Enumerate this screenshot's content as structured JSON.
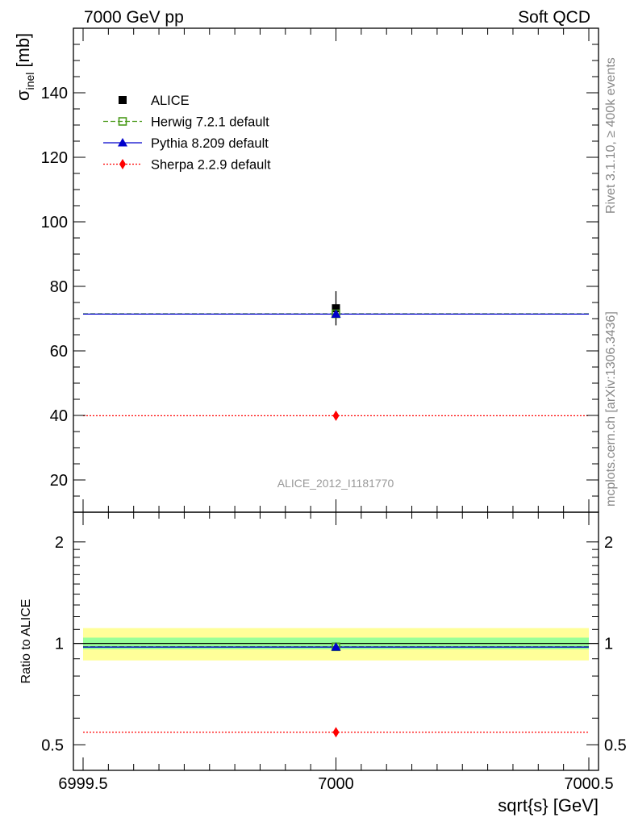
{
  "header": {
    "left": "7000 GeV pp",
    "right": "Soft QCD"
  },
  "side_labels": {
    "rivet": "Rivet 3.1.10, ≥ 400k events",
    "mcplots": "mcplots.cern.ch [arXiv:1306.3436]"
  },
  "colors": {
    "alice": "#000000",
    "herwig": "#4a9a1a",
    "pythia": "#0000cc",
    "sherpa": "#ff0000",
    "band_outer": "#ffff99",
    "band_inner": "#99ff99"
  },
  "chart_data": [
    {
      "type": "scatter",
      "panel": "main",
      "analysis_label": "ALICE_2012_I1181770",
      "ylabel_symbol": "σ",
      "ylabel_subscript": "inel",
      "ylabel_unit": "[mb]",
      "xlim": [
        6999.5,
        7000.5
      ],
      "ylim": [
        10,
        160
      ],
      "y_ticks": [
        20,
        40,
        60,
        80,
        100,
        120,
        140
      ],
      "legend_position": "top-left",
      "series": [
        {
          "name": "ALICE",
          "style": "data",
          "x": [
            7000
          ],
          "y": [
            73.2
          ],
          "y_err": [
            5.3
          ]
        },
        {
          "name": "Herwig 7.2.1 default",
          "style": "herwig",
          "x": [
            7000
          ],
          "y": [
            71.5
          ]
        },
        {
          "name": "Pythia 8.209 default",
          "style": "pythia",
          "x": [
            7000
          ],
          "y": [
            71.4
          ]
        },
        {
          "name": "Sherpa 2.2.9 default",
          "style": "sherpa",
          "x": [
            7000
          ],
          "y": [
            39.9
          ]
        }
      ]
    },
    {
      "type": "scatter",
      "panel": "ratio",
      "ylabel": "Ratio to ALICE",
      "xlabel": "sqrt{s} [GeV]",
      "xlim": [
        6999.5,
        7000.5
      ],
      "ylim": [
        0.42,
        2.45
      ],
      "log_y": true,
      "x_ticks": [
        "6999.5",
        "7000",
        "7000.5"
      ],
      "y_ticks": [
        "0.5",
        "1",
        "2"
      ],
      "reference_band": {
        "inner": [
          0.96,
          1.04
        ],
        "outer": [
          0.89,
          1.11
        ]
      },
      "series": [
        {
          "name": "Herwig 7.2.1 default",
          "style": "herwig",
          "x": [
            7000
          ],
          "y": [
            0.977
          ]
        },
        {
          "name": "Pythia 8.209 default",
          "style": "pythia",
          "x": [
            7000
          ],
          "y": [
            0.975
          ]
        },
        {
          "name": "Sherpa 2.2.9 default",
          "style": "sherpa",
          "x": [
            7000
          ],
          "y": [
            0.545
          ]
        }
      ]
    }
  ]
}
